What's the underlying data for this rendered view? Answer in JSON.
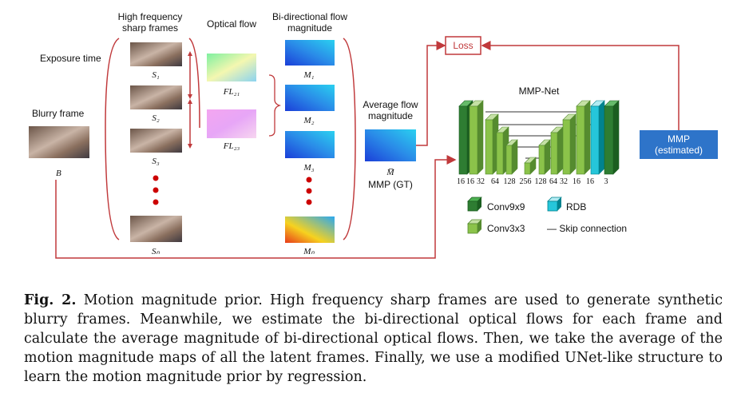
{
  "labels": {
    "high_freq_line1": "High frequency",
    "high_freq_line2": "sharp frames",
    "optical_flow": "Optical flow",
    "bidir_line1": "Bi-directional flow",
    "bidir_line2": "magnitude",
    "exposure_time": "Exposure time",
    "blurry_frame": "Blurry frame",
    "blurry_symbol": "B",
    "avg_flow_line1": "Average flow",
    "avg_flow_line2": "magnitude",
    "avg_symbol": "M̅",
    "mmp_gt": "MMP (GT)",
    "loss": "Loss",
    "mmp_net": "MMP-Net",
    "mmp_est_line1": "MMP",
    "mmp_est_line2": "(estimated)"
  },
  "frames": [
    "S₁",
    "S₂",
    "S₃",
    "Sₙ"
  ],
  "flows": [
    "FL₂₁",
    "FL₂₃"
  ],
  "magnitudes": [
    "M₁",
    "M₂",
    "M₃",
    "Mₙ"
  ],
  "channels": [
    "16",
    "16",
    "32",
    "64",
    "128",
    "256",
    "128",
    "64",
    "32",
    "16",
    "16",
    "3"
  ],
  "legend": {
    "conv9": "Conv9x9",
    "conv3": "Conv3x3",
    "rdb": "RDB",
    "skip": "— Skip connection"
  },
  "colors": {
    "arrow_red": "#c0393b",
    "conv9_dark": "#2e7d32",
    "conv3_green": "#8bc34a",
    "rdb_cyan": "#26c6da",
    "mmp_blue": "#2e74c9"
  },
  "caption": {
    "fig_label": "Fig. 2.",
    "text": " Motion magnitude prior. High frequency sharp frames are used to generate synthetic blurry frames. Meanwhile, we estimate the bi-directional optical flows for each frame and calculate the average magnitude of bi-directional optical flows. Then, we take the average of the motion magnitude maps of all the latent frames. Finally, we use a modified UNet-like structure to learn the motion magnitude prior by regression."
  }
}
